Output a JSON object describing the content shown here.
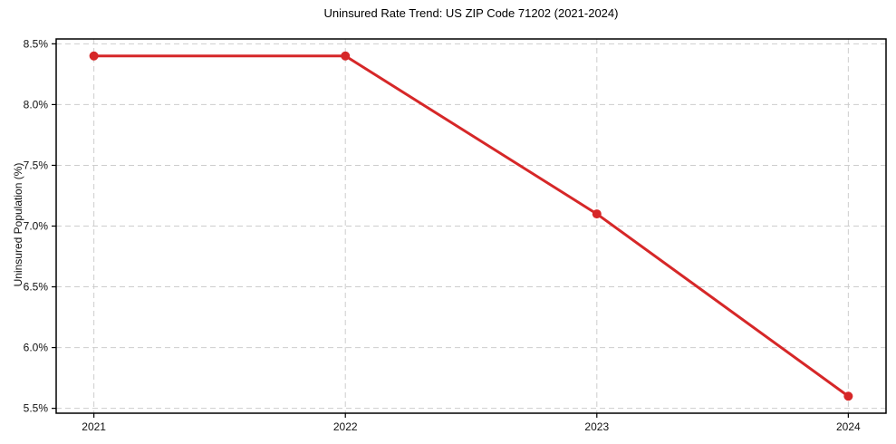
{
  "chart_data": {
    "type": "line",
    "title": "Uninsured Rate Trend: US ZIP Code 71202 (2021-2024)",
    "xlabel": "",
    "ylabel": "Uninsured Population (%)",
    "categories": [
      "2021",
      "2022",
      "2023",
      "2024"
    ],
    "values": [
      8.4,
      8.4,
      7.1,
      5.6
    ],
    "yticks": [
      5.5,
      6.0,
      6.5,
      7.0,
      7.5,
      8.0,
      8.5
    ],
    "ytick_labels": [
      "5.5%",
      "6.0%",
      "6.5%",
      "7.0%",
      "7.5%",
      "8.0%",
      "8.5%"
    ],
    "ylim": [
      5.46,
      8.54
    ],
    "xlim": [
      -0.15,
      3.15
    ],
    "grid": true,
    "grid_style": "dashed",
    "legend_position": "none",
    "line_color": "#d62728",
    "grid_color": "#cdcdcd",
    "axis_color": "#000000",
    "background_color": "#ffffff"
  }
}
